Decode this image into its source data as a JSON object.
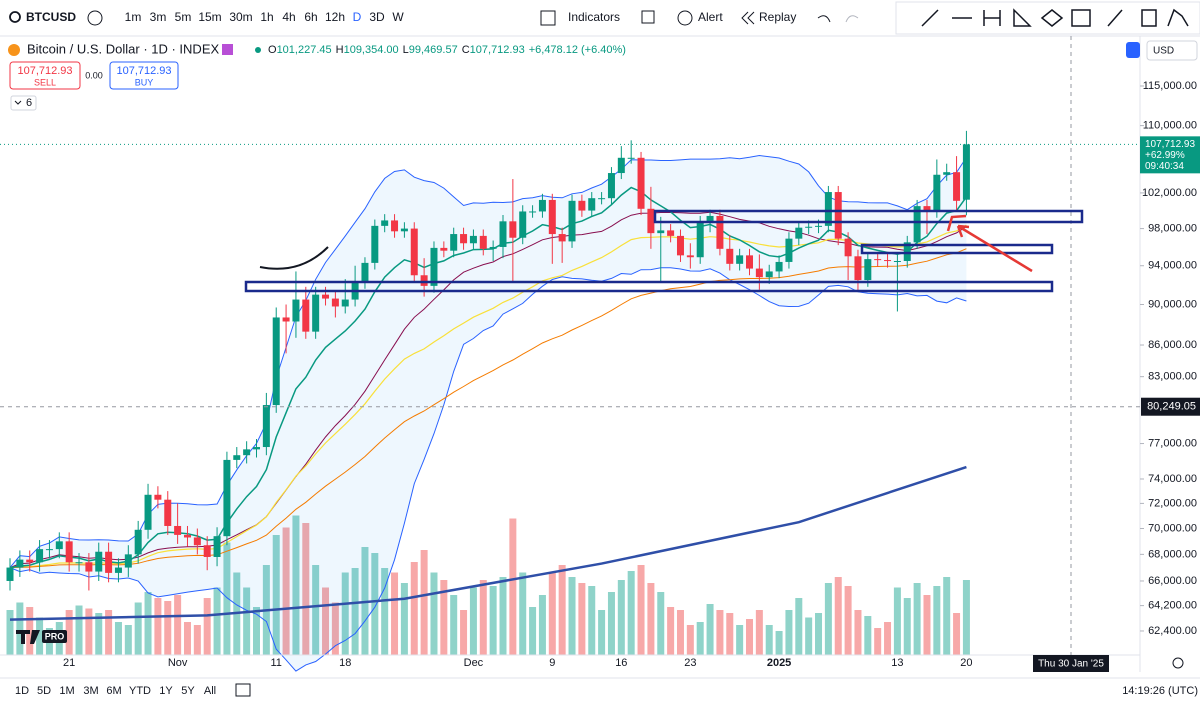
{
  "toolbar": {
    "symbol": "BTCUSD",
    "intervals": [
      "1m",
      "3m",
      "5m",
      "15m",
      "30m",
      "1h",
      "4h",
      "6h",
      "12h",
      "D",
      "3D",
      "W"
    ],
    "indicators": "Indicators",
    "alert": "Alert",
    "replay": "Replay"
  },
  "legend": {
    "title": "Bitcoin / U.S. Dollar · 1D · INDEX",
    "ohlc": [
      {
        "key": "O",
        "value": "101,227.45"
      },
      {
        "key": "H",
        "value": "109,354.00"
      },
      {
        "key": "L",
        "value": "99,469.57"
      },
      {
        "key": "C",
        "value": "107,712.93"
      }
    ],
    "change": "+6,478.12 (+6.40%)"
  },
  "trade": {
    "sell_price": "107,712.93",
    "sell": "SELL",
    "spread": "0.00",
    "buy_price": "107,712.93",
    "buy": "BUY"
  },
  "indicator_count": "6",
  "logo": "PRO",
  "chart_data": {
    "type": "candlestick",
    "log": true,
    "up_color": "#089981",
    "down_color": "#f23645",
    "categories": [
      null,
      null,
      null,
      null,
      null,
      null,
      "21",
      null,
      null,
      null,
      null,
      null,
      null,
      null,
      null,
      null,
      null,
      "Nov",
      null,
      null,
      null,
      null,
      null,
      null,
      null,
      null,
      null,
      "11",
      null,
      null,
      null,
      null,
      null,
      null,
      "18",
      null,
      null,
      null,
      null,
      null,
      null,
      null,
      null,
      null,
      null,
      null,
      null,
      "Dec",
      null,
      null,
      null,
      null,
      null,
      null,
      null,
      "9",
      null,
      null,
      null,
      null,
      null,
      null,
      "16",
      null,
      null,
      null,
      null,
      null,
      null,
      "23",
      null,
      null,
      null,
      null,
      null,
      null,
      null,
      null,
      "2025",
      null,
      null,
      null,
      null,
      null,
      null,
      null,
      null,
      null,
      null,
      null,
      "13",
      null,
      null,
      null,
      null,
      null,
      null,
      "20"
    ],
    "open": [
      66000,
      67000,
      67600,
      67400,
      68400,
      68400,
      69000,
      67400,
      67400,
      66700,
      68200,
      66600,
      67000,
      68000,
      69900,
      72700,
      72300,
      70200,
      69500,
      69300,
      68700,
      67800,
      69400,
      75600,
      76000,
      76500,
      76700,
      80400,
      88700,
      88300,
      90500,
      87300,
      91000,
      90600,
      89800,
      90500,
      92300,
      94300,
      98300,
      98900,
      97700,
      98000,
      93000,
      91900,
      95900,
      95600,
      97400,
      96400,
      97200,
      95800,
      96000,
      98800,
      97000,
      99900,
      99900,
      101200,
      97400,
      96600,
      101100,
      100000,
      101400,
      101400,
      104300,
      106100,
      106100,
      100200,
      97500,
      97800,
      97200,
      95100,
      94900,
      98700,
      99400,
      95800,
      94200,
      95100,
      93700,
      92800,
      93400,
      94400,
      96900,
      98100,
      98200,
      98300,
      102100,
      96900,
      95000,
      92500,
      94700,
      94600,
      94500,
      94500,
      96500,
      100500,
      99900,
      104100,
      104400,
      101227.45
    ],
    "high": [
      67700,
      68300,
      68300,
      69100,
      69100,
      69700,
      69700,
      68100,
      68100,
      68900,
      68900,
      67700,
      68700,
      70600,
      73600,
      73400,
      73000,
      72000,
      70200,
      70000,
      69400,
      70100,
      76300,
      76700,
      77200,
      77400,
      81500,
      89700,
      90000,
      93400,
      91800,
      91800,
      91800,
      91300,
      92600,
      94000,
      94900,
      99000,
      99600,
      99600,
      98700,
      98700,
      94800,
      96600,
      96600,
      98100,
      98100,
      97900,
      97900,
      96700,
      99500,
      103600,
      100600,
      100600,
      101900,
      101900,
      98100,
      101800,
      101800,
      102100,
      102100,
      105000,
      107500,
      108200,
      106800,
      102700,
      99300,
      98500,
      97900,
      96400,
      99400,
      100100,
      100100,
      97300,
      95800,
      95800,
      95200,
      94100,
      95100,
      97600,
      98800,
      98900,
      99000,
      102800,
      102800,
      97600,
      95700,
      95400,
      95400,
      95300,
      95200,
      97200,
      101200,
      101200,
      105900,
      105400,
      106300,
      109354
    ],
    "low": [
      65300,
      66300,
      66700,
      66700,
      67700,
      67700,
      66700,
      66700,
      65300,
      66000,
      65900,
      65900,
      66300,
      67300,
      69200,
      71600,
      69500,
      68800,
      68600,
      68000,
      66800,
      67100,
      68700,
      74900,
      75300,
      75800,
      76000,
      79700,
      85200,
      86700,
      86600,
      86600,
      89900,
      88700,
      89100,
      89800,
      91600,
      93600,
      97600,
      97000,
      97000,
      92300,
      90800,
      91200,
      94900,
      94900,
      95700,
      95700,
      95100,
      94500,
      94800,
      92300,
      96300,
      99200,
      99200,
      94200,
      94300,
      95900,
      99300,
      99300,
      100700,
      100700,
      103600,
      105400,
      99500,
      95800,
      92400,
      96500,
      94400,
      93700,
      94200,
      97600,
      95100,
      93500,
      93500,
      93000,
      91500,
      92100,
      92700,
      93700,
      96200,
      97400,
      97500,
      97600,
      96200,
      92500,
      91300,
      91800,
      93900,
      93800,
      89300,
      93800,
      95800,
      97400,
      99200,
      103400,
      99900,
      99469.57
    ],
    "close": [
      67000,
      67600,
      67400,
      68400,
      68400,
      69000,
      67400,
      67400,
      66700,
      68200,
      66600,
      67000,
      68000,
      69900,
      72700,
      72300,
      70200,
      69500,
      69300,
      68700,
      67800,
      69400,
      75600,
      76000,
      76500,
      76700,
      80400,
      88700,
      88300,
      90500,
      87300,
      91000,
      90600,
      89800,
      90500,
      92300,
      94300,
      98300,
      98900,
      97700,
      98000,
      93000,
      91900,
      95900,
      95600,
      97400,
      96400,
      97200,
      95800,
      96000,
      98800,
      97000,
      99900,
      99900,
      101200,
      97400,
      96600,
      101100,
      100000,
      101400,
      101400,
      104300,
      106100,
      106100,
      100200,
      97500,
      97800,
      97200,
      95100,
      94900,
      98700,
      99400,
      95800,
      94200,
      95100,
      93700,
      92800,
      93400,
      94400,
      96900,
      98100,
      98200,
      98300,
      102100,
      96900,
      95000,
      92500,
      94700,
      94600,
      94500,
      94500,
      96500,
      100500,
      99900,
      104100,
      104400,
      101100,
      107712.93
    ],
    "volume": [
      30,
      35,
      32,
      25,
      18,
      22,
      30,
      33,
      31,
      28,
      30,
      22,
      20,
      35,
      42,
      38,
      36,
      40,
      22,
      20,
      38,
      45,
      75,
      55,
      45,
      32,
      60,
      80,
      85,
      93,
      88,
      60,
      45,
      35,
      55,
      58,
      72,
      68,
      58,
      55,
      48,
      62,
      70,
      55,
      50,
      40,
      30,
      45,
      50,
      46,
      52,
      91,
      55,
      32,
      40,
      55,
      60,
      52,
      48,
      46,
      30,
      42,
      50,
      56,
      60,
      48,
      42,
      32,
      30,
      20,
      22,
      34,
      30,
      28,
      20,
      24,
      30,
      20,
      16,
      30,
      38,
      25,
      28,
      48,
      52,
      46,
      30,
      26,
      18,
      22,
      45,
      38,
      48,
      40,
      46,
      52,
      28,
      50
    ],
    "vlim": [
      0,
      100
    ],
    "ma200": {
      "x": [
        0,
        20,
        40,
        60,
        80,
        97
      ],
      "values": [
        63200,
        63500,
        64700,
        67300,
        70500,
        75000
      ],
      "color": "#2f4fa8"
    },
    "ylim": [
      60740,
      121770
    ],
    "yticks": [
      {
        "value": 115000,
        "label": "115,000.00"
      },
      {
        "value": 110000,
        "label": "110,000.00"
      },
      {
        "value": 102000,
        "label": "102,000.00"
      },
      {
        "value": 98000,
        "label": "98,000.00"
      },
      {
        "value": 94000,
        "label": "94,000.00"
      },
      {
        "value": 90000,
        "label": "90,000.00"
      },
      {
        "value": 86000,
        "label": "86,000.00"
      },
      {
        "value": 83000,
        "label": "83,000.00"
      },
      {
        "value": 77000,
        "label": "77,000.00"
      },
      {
        "value": 74000,
        "label": "74,000.00"
      },
      {
        "value": 72000,
        "label": "72,000.00"
      },
      {
        "value": 70000,
        "label": "70,000.00"
      },
      {
        "value": 68000,
        "label": "68,000.00"
      },
      {
        "value": 66000,
        "label": "66,000.00"
      },
      {
        "value": 64200,
        "label": "64,200.00"
      },
      {
        "value": 62400,
        "label": "62,400.00"
      }
    ],
    "last_price": {
      "value": 107712.93,
      "label": "107,712.93"
    },
    "crosshair_price": {
      "value": 80249.05,
      "label": "80,249.05"
    }
  },
  "price_axis": {
    "currency": "USD",
    "change": "+62.99%",
    "countdown": "09:40:34"
  },
  "crosshair_date": "Thu 30 Jan '25",
  "ranges": [
    "1D",
    "5D",
    "1M",
    "3M",
    "6M",
    "YTD",
    "1Y",
    "5Y",
    "All"
  ],
  "clock": "14:19:26 (UTC)"
}
